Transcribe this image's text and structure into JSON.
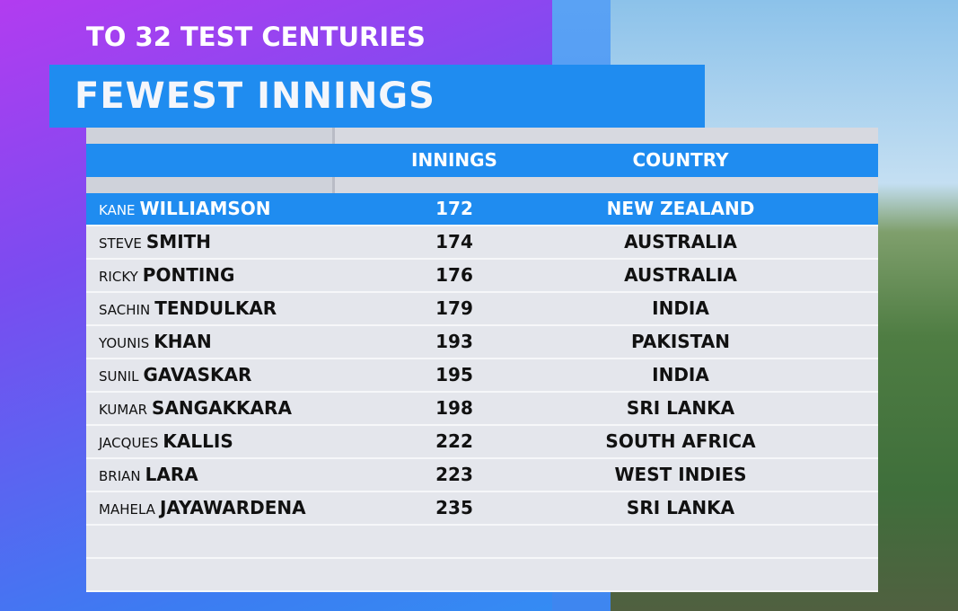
{
  "header": {
    "subtitle": "TO 32 TEST CENTURIES",
    "title": "FEWEST INNINGS"
  },
  "table": {
    "columns": [
      "INNINGS",
      "COUNTRY"
    ],
    "rows": [
      {
        "first": "KANE",
        "last": "WILLIAMSON",
        "innings": "172",
        "country": "NEW ZEALAND"
      },
      {
        "first": "STEVE",
        "last": "SMITH",
        "innings": "174",
        "country": "AUSTRALIA"
      },
      {
        "first": "RICKY",
        "last": "PONTING",
        "innings": "176",
        "country": "AUSTRALIA"
      },
      {
        "first": "SACHIN",
        "last": "TENDULKAR",
        "innings": "179",
        "country": "INDIA"
      },
      {
        "first": "YOUNIS",
        "last": "KHAN",
        "innings": "193",
        "country": "PAKISTAN"
      },
      {
        "first": "SUNIL",
        "last": "GAVASKAR",
        "innings": "195",
        "country": "INDIA"
      },
      {
        "first": "KUMAR",
        "last": "SANGAKKARA",
        "innings": "198",
        "country": "SRI LANKA"
      },
      {
        "first": "JACQUES",
        "last": "KALLIS",
        "innings": "222",
        "country": "SOUTH AFRICA"
      },
      {
        "first": "BRIAN",
        "last": "LARA",
        "innings": "223",
        "country": "WEST INDIES"
      },
      {
        "first": "MAHELA",
        "last": "JAYAWARDENA",
        "innings": "235",
        "country": "SRI LANKA"
      }
    ]
  }
}
